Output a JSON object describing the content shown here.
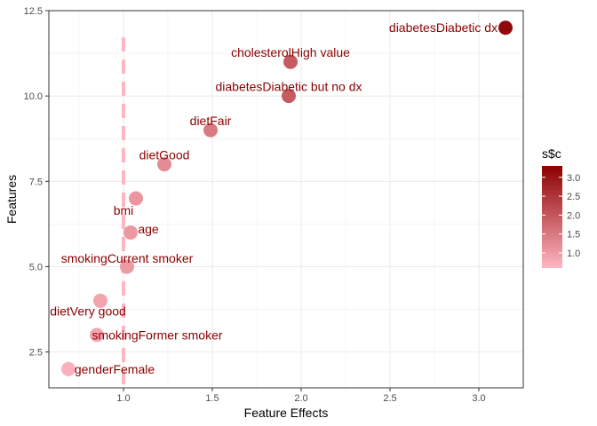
{
  "chart_data": {
    "type": "scatter",
    "xlabel": "Feature Effects",
    "ylabel": "Features",
    "xlim": [
      0.58,
      3.25
    ],
    "ylim": [
      1.45,
      12.5
    ],
    "x_ticks": [
      1.0,
      1.5,
      2.0,
      2.5,
      3.0
    ],
    "x_tick_labels": [
      "1.0",
      "1.5",
      "2.0",
      "2.5",
      "3.0"
    ],
    "y_ticks": [
      2.5,
      5.0,
      7.5,
      10.0,
      12.5
    ],
    "y_tick_labels": [
      "2.5",
      "5.0",
      "7.5",
      "10.0",
      "12.5"
    ],
    "reference_line_x": 1.0,
    "points": [
      {
        "label": "diabetesDiabetic dx",
        "x": 3.15,
        "y": 12,
        "c": 3.15,
        "label_dx": -0.35,
        "label_dy": 0
      },
      {
        "label": "cholesterolHigh value",
        "x": 1.94,
        "y": 11,
        "c": 1.94,
        "label_dx": 0,
        "label_dy": 0.28
      },
      {
        "label": "diabetesDiabetic but no dx",
        "x": 1.93,
        "y": 10,
        "c": 1.93,
        "label_dx": 0,
        "label_dy": 0.28
      },
      {
        "label": "dietFair",
        "x": 1.49,
        "y": 9,
        "c": 1.49,
        "label_dx": 0,
        "label_dy": 0.28
      },
      {
        "label": "dietGood",
        "x": 1.23,
        "y": 8,
        "c": 1.23,
        "label_dx": 0,
        "label_dy": 0.28
      },
      {
        "label": "bmi",
        "x": 1.07,
        "y": 7,
        "c": 1.07,
        "label_dx": -0.07,
        "label_dy": -0.35
      },
      {
        "label": "age",
        "x": 1.04,
        "y": 6,
        "c": 1.04,
        "label_dx": 0.1,
        "label_dy": 0.1
      },
      {
        "label": "smokingCurrent smoker",
        "x": 1.02,
        "y": 5,
        "c": 1.02,
        "label_dx": 0,
        "label_dy": 0.25
      },
      {
        "label": "dietVery good",
        "x": 0.87,
        "y": 4,
        "c": 0.87,
        "label_dx": -0.07,
        "label_dy": -0.3
      },
      {
        "label": "smokingFormer smoker",
        "x": 0.85,
        "y": 3,
        "c": 0.85,
        "label_dx": 0.34,
        "label_dy": 0
      },
      {
        "label": "genderFemale",
        "x": 0.69,
        "y": 2,
        "c": 0.69,
        "label_dx": 0.26,
        "label_dy": 0
      }
    ],
    "legend": {
      "title": "s$c",
      "position": "right",
      "min": 0.6,
      "max": 3.3,
      "ticks": [
        1.0,
        1.5,
        2.0,
        2.5,
        3.0
      ],
      "tick_labels": [
        "1.0",
        "1.5",
        "2.0",
        "2.5",
        "3.0"
      ],
      "low_color": "#ffb6c1",
      "high_color": "#8b0000"
    },
    "colors": {
      "panel_background": "#ffffff",
      "panel_border": "#333333",
      "grid": "#ebebeb",
      "reference_line": "#ffb6c1",
      "label_text": "#8b0000"
    }
  }
}
